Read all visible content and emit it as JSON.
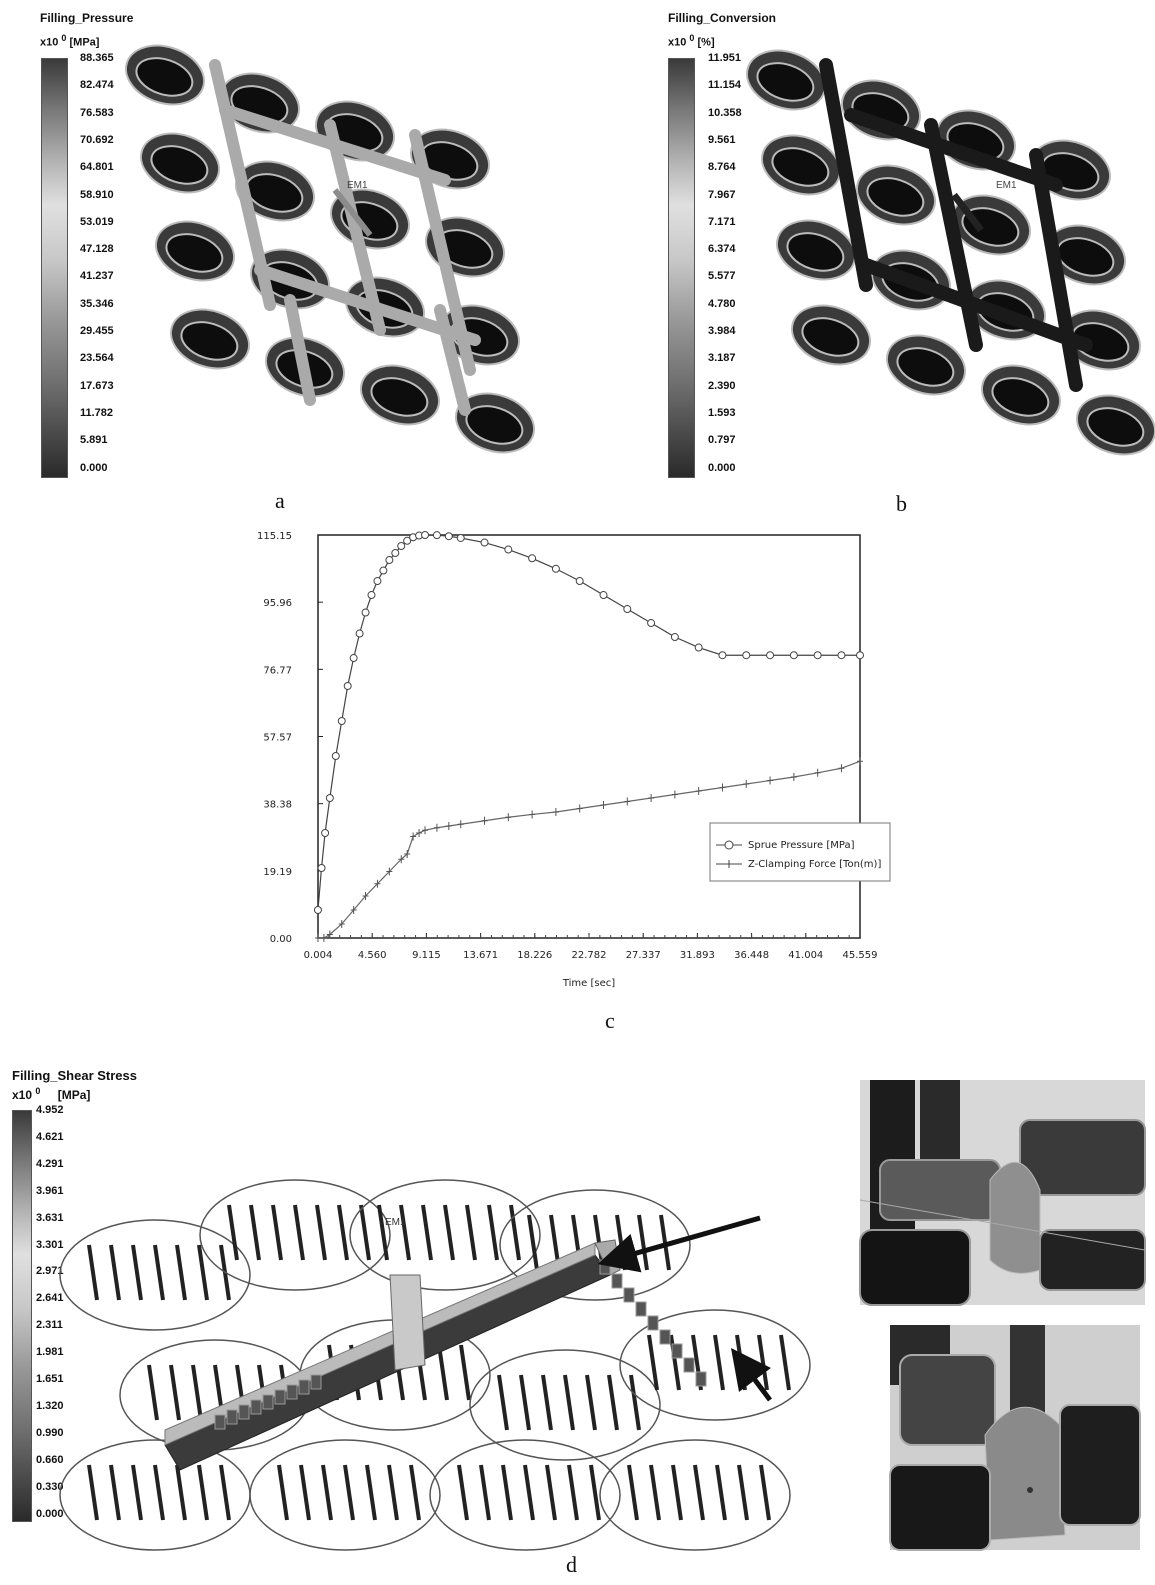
{
  "panel_a": {
    "title": "Filling_Pressure",
    "unit_prefix": "x10",
    "unit_exp": "0",
    "unit": "[MPa]",
    "scale": [
      "88.365",
      "82.474",
      "76.583",
      "70.692",
      "64.801",
      "58.910",
      "53.019",
      "47.128",
      "41.237",
      "35.346",
      "29.455",
      "23.564",
      "17.673",
      "11.782",
      "5.891",
      "0.000"
    ],
    "marker": "EM1",
    "caption": "a"
  },
  "panel_b": {
    "title": "Filling_Conversion",
    "unit_prefix": "x10",
    "unit_exp": "0",
    "unit": "[%]",
    "scale": [
      "11.951",
      "11.154",
      "10.358",
      "9.561",
      "8.764",
      "7.967",
      "7.171",
      "6.374",
      "5.577",
      "4.780",
      "3.984",
      "3.187",
      "2.390",
      "1.593",
      "0.797",
      "0.000"
    ],
    "marker": "EM1",
    "caption": "b"
  },
  "panel_c": {
    "caption": "c",
    "chart_data": {
      "type": "line",
      "xlabel": "Time [sec]",
      "ylabel": "",
      "x_ticks": [
        "0.004",
        "4.560",
        "9.115",
        "13.671",
        "18.226",
        "22.782",
        "27.337",
        "31.893",
        "36.448",
        "41.004",
        "45.559"
      ],
      "y_ticks": [
        "0.00",
        "19.19",
        "38.38",
        "57.57",
        "76.77",
        "95.96",
        "115.15"
      ],
      "xlim": [
        0.004,
        45.559
      ],
      "ylim": [
        0.0,
        115.15
      ],
      "legend_position": "right",
      "series": [
        {
          "name": "Sprue Pressure [MPa]",
          "marker": "circle",
          "x": [
            0.0,
            0.3,
            0.6,
            1.0,
            1.5,
            2.0,
            2.5,
            3.0,
            3.5,
            4.0,
            4.5,
            5.0,
            5.5,
            6.0,
            6.5,
            7.0,
            7.5,
            8.0,
            8.5,
            9.0,
            10.0,
            11.0,
            12.0,
            14.0,
            16.0,
            18.0,
            20.0,
            22.0,
            24.0,
            26.0,
            28.0,
            30.0,
            32.0,
            34.0,
            36.0,
            38.0,
            40.0,
            42.0,
            44.0,
            45.559
          ],
          "y": [
            8.0,
            20.0,
            30.0,
            40.0,
            52.0,
            62.0,
            72.0,
            80.0,
            87.0,
            93.0,
            98.0,
            102.0,
            105.0,
            108.0,
            110.0,
            112.0,
            113.5,
            114.5,
            115.0,
            115.15,
            115.1,
            114.8,
            114.3,
            113.0,
            111.0,
            108.5,
            105.5,
            102.0,
            98.0,
            94.0,
            90.0,
            86.0,
            83.0,
            80.8,
            80.8,
            80.8,
            80.8,
            80.8,
            80.8,
            80.8
          ]
        },
        {
          "name": "Z-Clamping Force [Ton(m)]",
          "marker": "plus",
          "x": [
            0.0,
            0.5,
            1.0,
            2.0,
            3.0,
            4.0,
            5.0,
            6.0,
            7.0,
            7.5,
            8.0,
            8.5,
            9.0,
            10.0,
            11.0,
            12.0,
            14.0,
            16.0,
            18.0,
            20.0,
            22.0,
            24.0,
            26.0,
            28.0,
            30.0,
            32.0,
            34.0,
            36.0,
            38.0,
            40.0,
            42.0,
            44.0,
            45.559
          ],
          "y": [
            0.0,
            0.0,
            1.0,
            4.0,
            8.0,
            12.0,
            15.5,
            19.0,
            22.5,
            24.0,
            29.0,
            30.0,
            30.8,
            31.5,
            32.0,
            32.5,
            33.5,
            34.5,
            35.3,
            36.0,
            37.0,
            38.0,
            39.0,
            40.0,
            41.0,
            42.0,
            43.0,
            44.0,
            45.0,
            46.0,
            47.2,
            48.5,
            50.5
          ]
        }
      ]
    }
  },
  "panel_d": {
    "title": "Filling_Shear Stress",
    "unit_prefix": "x10",
    "unit_exp": "0",
    "unit": "[MPa]",
    "scale": [
      "4.952",
      "4.621",
      "4.291",
      "3.961",
      "3.631",
      "3.301",
      "2.971",
      "2.641",
      "2.311",
      "1.981",
      "1.651",
      "1.320",
      "0.990",
      "0.660",
      "0.330",
      "0.000"
    ],
    "marker": "EM1",
    "caption": "d"
  }
}
